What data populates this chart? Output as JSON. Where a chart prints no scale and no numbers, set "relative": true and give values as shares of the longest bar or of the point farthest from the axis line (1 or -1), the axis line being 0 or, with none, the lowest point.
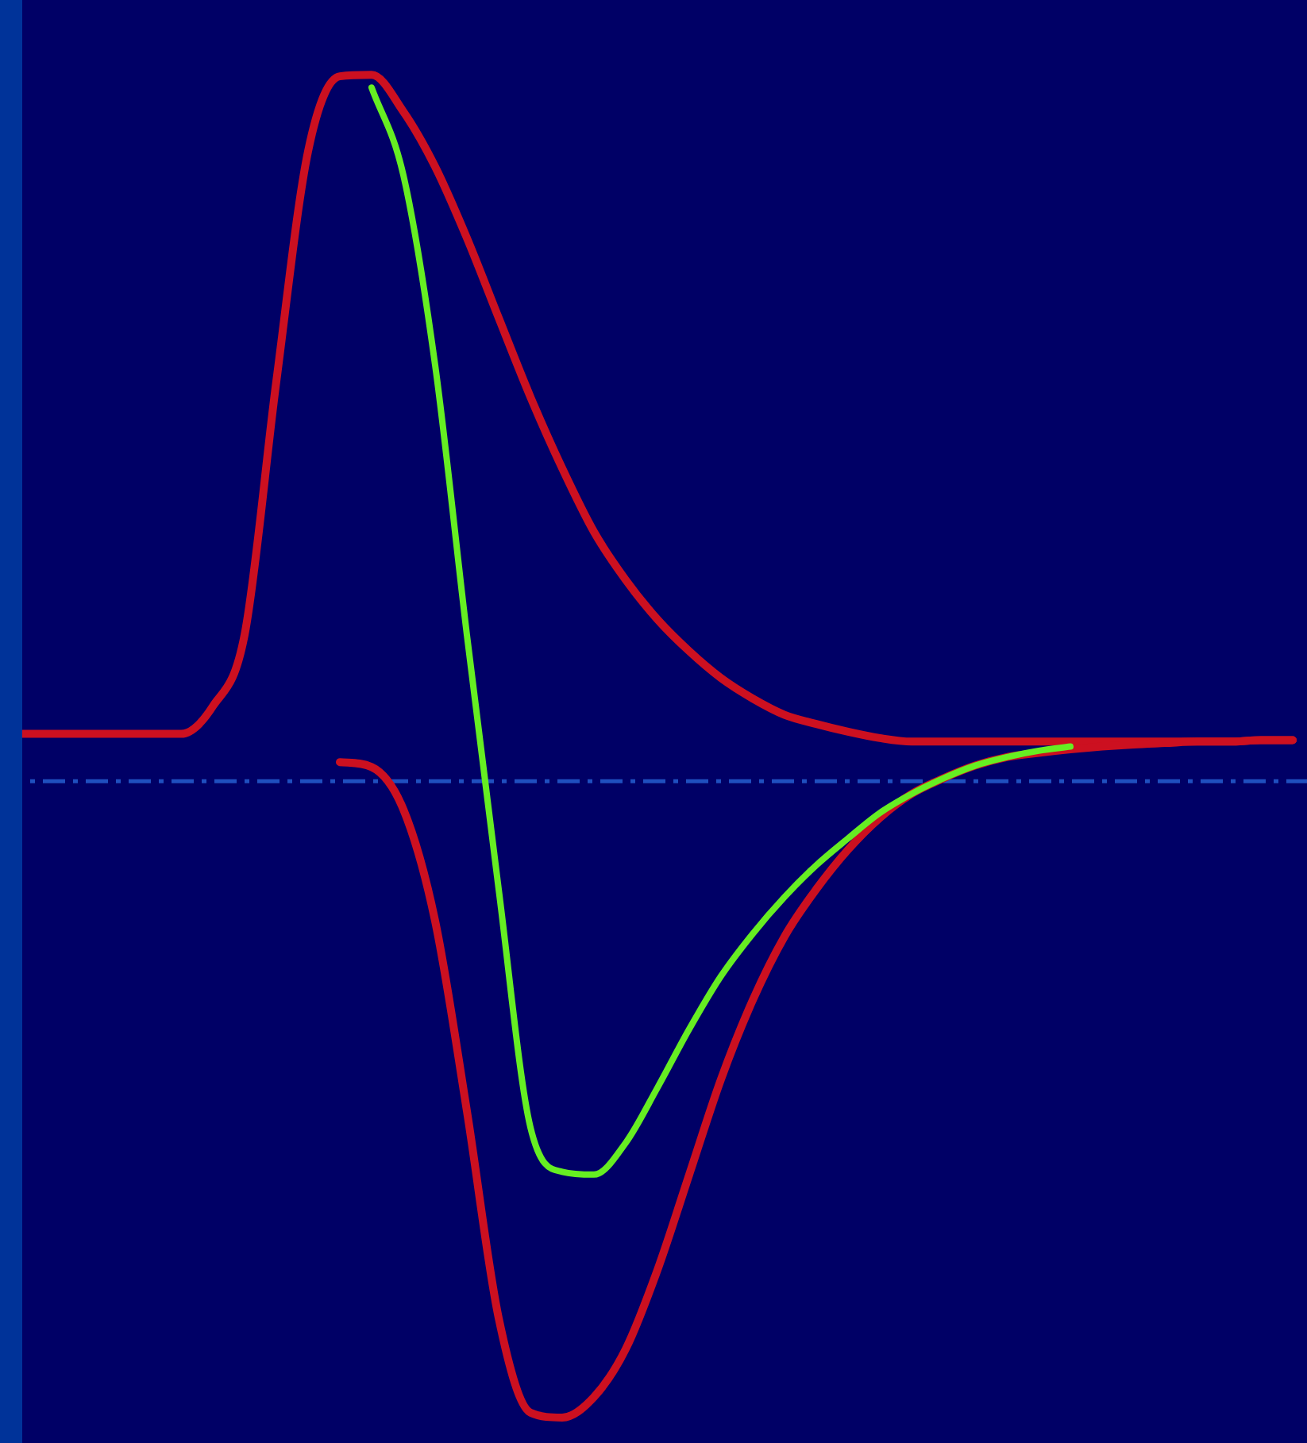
{
  "chart_data": {
    "type": "line",
    "relative": true,
    "legend": false,
    "tick_labels": false,
    "marker": "none",
    "line_style": "solid",
    "categories": [
      null,
      null,
      null,
      null,
      null,
      null,
      null,
      null,
      null,
      null,
      null,
      null,
      null,
      null,
      null,
      null,
      null,
      null,
      null,
      null,
      null,
      null,
      null,
      null,
      null,
      null,
      null,
      null,
      null,
      null,
      null,
      null,
      null,
      null,
      null,
      null,
      null,
      null,
      null,
      null,
      null
    ],
    "ref_lines": [
      {
        "axis": "y",
        "value": 0,
        "color": "#1f4fbf",
        "line_style": "dashed"
      }
    ],
    "series": [
      {
        "color": "#cc1020",
        "values": [
          0.067,
          0.067,
          0.067,
          0.067,
          0.067,
          0.067,
          0.106,
          0.207,
          0.566,
          0.892,
          0.998,
          1.0,
          0.948,
          0.87,
          0.769,
          0.656,
          0.544,
          0.443,
          0.353,
          0.285,
          0.229,
          0.184,
          0.146,
          0.117,
          0.094,
          0.081,
          0.07,
          0.061,
          0.056,
          0.056,
          0.056,
          0.056,
          0.056,
          0.056,
          0.056,
          0.056,
          0.056,
          0.056,
          0.056,
          0.058,
          0.058
        ]
      },
      {
        "color": "#cc1020",
        "values": [
          null,
          null,
          null,
          null,
          null,
          null,
          null,
          null,
          null,
          null,
          0.027,
          0.02,
          -0.04,
          -0.198,
          -0.467,
          -0.76,
          -0.894,
          -0.901,
          -0.872,
          -0.804,
          -0.692,
          -0.557,
          -0.422,
          -0.31,
          -0.22,
          -0.153,
          -0.097,
          -0.052,
          -0.018,
          0.004,
          0.022,
          0.034,
          0.04,
          0.045,
          0.049,
          0.052,
          0.054,
          0.056,
          0.056,
          0.058,
          0.058
        ]
      },
      {
        "color": "#66ee22",
        "values": [
          null,
          null,
          null,
          null,
          null,
          null,
          null,
          null,
          null,
          null,
          null,
          0.982,
          0.858,
          0.589,
          0.207,
          -0.153,
          -0.49,
          -0.553,
          -0.557,
          -0.512,
          -0.434,
          -0.351,
          -0.276,
          -0.216,
          -0.164,
          -0.119,
          -0.081,
          -0.045,
          -0.018,
          0.004,
          0.022,
          0.034,
          0.043,
          0.049,
          null,
          null,
          null,
          null,
          null,
          null,
          null
        ]
      }
    ]
  }
}
